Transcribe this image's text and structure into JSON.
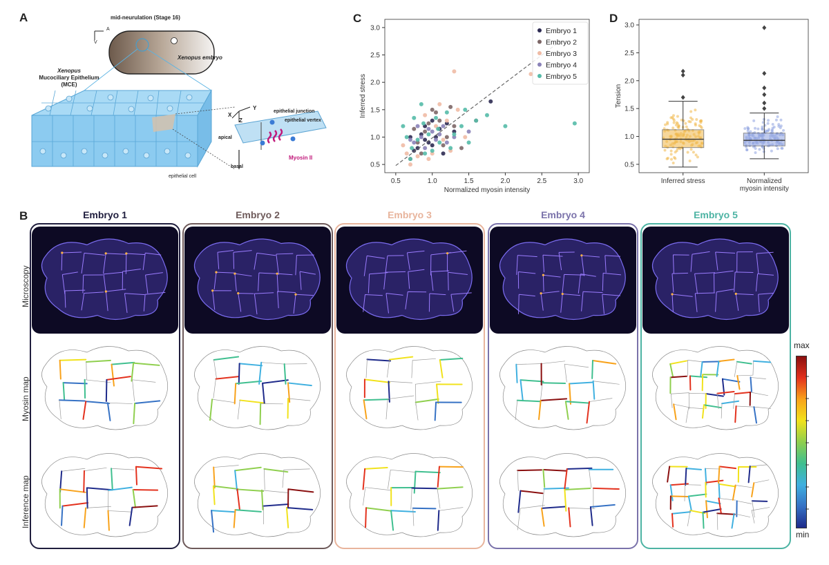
{
  "panel_a": {
    "letter": "A",
    "stage_label": "mid-neurulation (Stage 16)",
    "axis_a": "A",
    "axis_v": "V",
    "embryo_label": "Xenopus embryo",
    "mce_line1": "Xenopus",
    "mce_line2": "Mucociliary Epithelium",
    "mce_line3": "(MCE)",
    "axis_x": "X",
    "axis_y": "Y",
    "axis_z": "Z",
    "junction_label": "epithelial junction",
    "vertex_label": "epithelial vertex",
    "apical_label": "apical",
    "basal_label": "basal",
    "myosin_label": "Myosin II",
    "cell_label": "epithelial cell",
    "colors": {
      "myosin": "#c0187a",
      "tissue": "#7cc0ea"
    }
  },
  "panel_b": {
    "letter": "B",
    "row_labels": [
      "Microscopy",
      "Myosin map",
      "Inference map"
    ],
    "embryos": [
      {
        "title": "Embryo 1",
        "color": "#1f1d3d"
      },
      {
        "title": "Embryo 2",
        "color": "#6e5a5a"
      },
      {
        "title": "Embryo 3",
        "color": "#e8b49c"
      },
      {
        "title": "Embryo 4",
        "color": "#7a72aa"
      },
      {
        "title": "Embryo 5",
        "color": "#4cb3a3"
      }
    ],
    "colorbar": {
      "max_label": "max",
      "min_label": "min"
    }
  },
  "panel_c": {
    "letter": "C",
    "chart_data": {
      "type": "scatter",
      "title": "",
      "xlabel": "Normalized myosin intensity",
      "ylabel": "Inferred stress",
      "xlim": [
        0.35,
        3.15
      ],
      "ylim": [
        0.35,
        3.15
      ],
      "xticks": [
        "0.5",
        "1.0",
        "1.5",
        "2.0",
        "2.5",
        "3.0"
      ],
      "yticks": [
        "0.5",
        "1.0",
        "1.5",
        "2.0",
        "2.5",
        "3.0"
      ],
      "legend_position": "top-right",
      "fit_line": {
        "x": [
          0.5,
          2.75
        ],
        "y": [
          0.48,
          2.75
        ],
        "style": "dashed"
      },
      "series": [
        {
          "name": "Embryo 1",
          "color": "#2d2b52",
          "points": [
            [
              0.8,
              0.8
            ],
            [
              0.85,
              1.05
            ],
            [
              0.9,
              1.2
            ],
            [
              0.95,
              0.9
            ],
            [
              1.0,
              1.3
            ],
            [
              1.05,
              1.0
            ],
            [
              1.1,
              1.15
            ],
            [
              1.2,
              1.25
            ],
            [
              1.8,
              1.65
            ],
            [
              0.75,
              0.75
            ],
            [
              1.0,
              0.85
            ],
            [
              1.15,
              0.7
            ],
            [
              0.9,
              0.95
            ],
            [
              1.3,
              1.1
            ],
            [
              0.7,
              1.0
            ]
          ]
        },
        {
          "name": "Embryo 2",
          "color": "#7d6767",
          "points": [
            [
              0.7,
              0.6
            ],
            [
              0.8,
              0.9
            ],
            [
              0.9,
              1.1
            ],
            [
              1.0,
              1.5
            ],
            [
              1.1,
              1.3
            ],
            [
              1.2,
              1.0
            ],
            [
              1.3,
              1.2
            ],
            [
              1.4,
              0.8
            ],
            [
              0.85,
              0.7
            ],
            [
              1.05,
              1.45
            ],
            [
              0.95,
              1.25
            ],
            [
              1.15,
              0.85
            ],
            [
              1.6,
              1.3
            ],
            [
              0.75,
              1.15
            ],
            [
              1.25,
              1.55
            ]
          ]
        },
        {
          "name": "Embryo 3",
          "color": "#efbba5",
          "points": [
            [
              0.7,
              0.5
            ],
            [
              0.8,
              0.65
            ],
            [
              0.9,
              1.4
            ],
            [
              1.0,
              0.7
            ],
            [
              1.1,
              1.6
            ],
            [
              1.2,
              1.3
            ],
            [
              1.3,
              2.2
            ],
            [
              1.35,
              1.5
            ],
            [
              2.35,
              2.15
            ],
            [
              0.6,
              0.85
            ],
            [
              0.95,
              0.6
            ],
            [
              1.15,
              0.95
            ],
            [
              1.45,
              1.0
            ],
            [
              0.65,
              0.7
            ],
            [
              1.05,
              1.2
            ],
            [
              1.25,
              0.75
            ]
          ]
        },
        {
          "name": "Embryo 4",
          "color": "#8a82b8",
          "points": [
            [
              0.75,
              0.9
            ],
            [
              0.85,
              1.0
            ],
            [
              0.95,
              1.15
            ],
            [
              1.05,
              0.95
            ],
            [
              1.1,
              1.05
            ],
            [
              1.2,
              0.9
            ],
            [
              0.9,
              0.8
            ],
            [
              1.0,
              1.1
            ],
            [
              1.3,
              1.0
            ],
            [
              0.8,
              1.2
            ],
            [
              1.15,
              1.2
            ],
            [
              1.5,
              1.1
            ],
            [
              0.7,
              0.95
            ]
          ]
        },
        {
          "name": "Embryo 5",
          "color": "#55bba9",
          "points": [
            [
              0.6,
              1.2
            ],
            [
              0.7,
              0.6
            ],
            [
              0.75,
              1.35
            ],
            [
              0.8,
              0.95
            ],
            [
              0.85,
              1.6
            ],
            [
              0.9,
              0.7
            ],
            [
              0.95,
              1.05
            ],
            [
              1.0,
              0.75
            ],
            [
              1.05,
              1.35
            ],
            [
              1.1,
              0.9
            ],
            [
              1.2,
              1.45
            ],
            [
              1.3,
              1.05
            ],
            [
              1.4,
              1.2
            ],
            [
              1.5,
              0.9
            ],
            [
              1.6,
              1.3
            ],
            [
              1.75,
              1.4
            ],
            [
              2.0,
              1.2
            ],
            [
              2.95,
              1.25
            ],
            [
              0.65,
              1.0
            ],
            [
              1.25,
              0.8
            ],
            [
              0.88,
              1.25
            ],
            [
              1.45,
              1.5
            ],
            [
              0.72,
              0.8
            ],
            [
              1.08,
              1.15
            ]
          ]
        }
      ]
    }
  },
  "panel_d": {
    "letter": "D",
    "chart_data": {
      "type": "box",
      "title": "",
      "xlabel": "",
      "ylabel": "Tension",
      "ylim": [
        0.35,
        3.1
      ],
      "yticks": [
        "0.5",
        "1.0",
        "1.5",
        "2.0",
        "2.5",
        "3.0"
      ],
      "categories": [
        "Inferred stress",
        "Normalized myosin intensity"
      ],
      "category_lines": [
        [
          "Inferred stress"
        ],
        [
          "Normalized",
          "myosin intensity"
        ]
      ],
      "boxes": [
        {
          "name": "Inferred stress",
          "color": "#f0b84a",
          "q1": 0.8,
          "median": 0.95,
          "q3": 1.12,
          "whisker_low": 0.45,
          "whisker_high": 1.63,
          "outliers": [
            1.7,
            2.1,
            2.17
          ]
        },
        {
          "name": "Normalized myosin intensity",
          "color": "#8ea2e0",
          "q1": 0.83,
          "median": 0.93,
          "q3": 1.06,
          "whisker_low": 0.6,
          "whisker_high": 1.42,
          "outliers": [
            1.5,
            1.6,
            1.75,
            1.87,
            2.13,
            2.95
          ]
        }
      ]
    }
  }
}
